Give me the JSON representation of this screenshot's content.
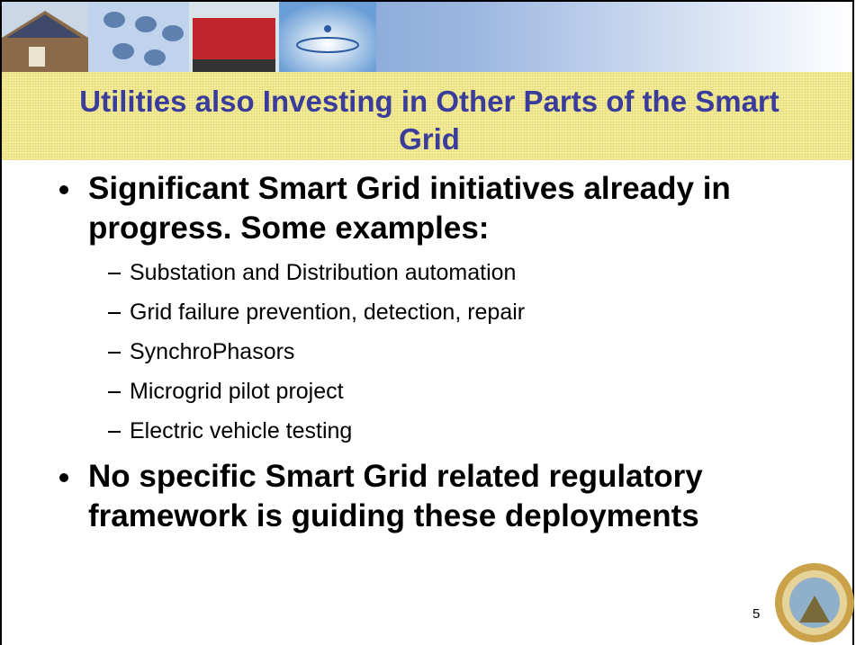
{
  "slide": {
    "title": "Utilities also Investing in Other Parts of the Smart Grid",
    "bullets": [
      {
        "text": "Significant Smart Grid initiatives already in progress.  Some examples:",
        "sub_bullets": [
          "Substation and Distribution automation",
          "Grid failure prevention, detection, repair",
          "SynchroPhasors",
          "Microgrid pilot project",
          "Electric vehicle testing"
        ]
      },
      {
        "text": "No specific Smart Grid related regulatory framework is guiding these deployments",
        "sub_bullets": []
      }
    ],
    "page_number": 5
  }
}
